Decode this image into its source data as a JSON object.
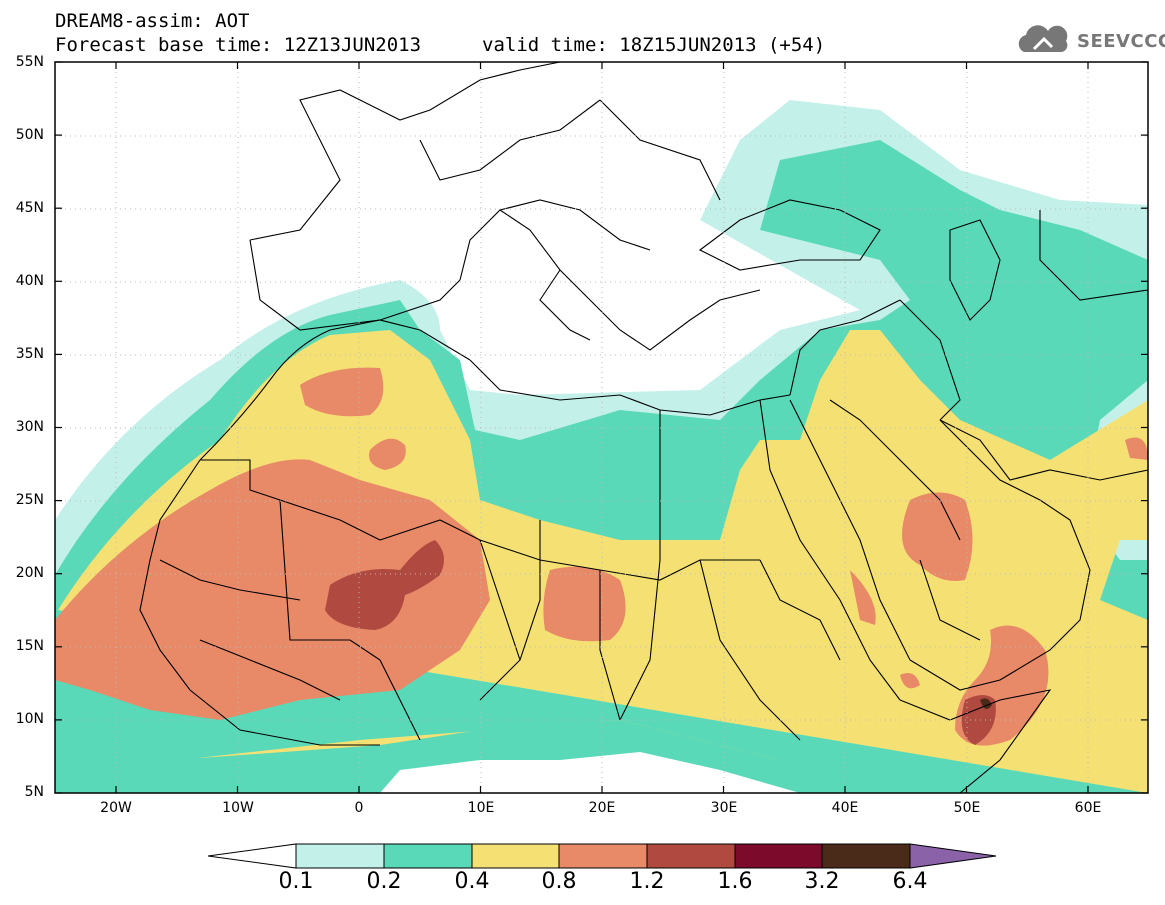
{
  "header": {
    "line1": "DREAM8-assim: AOT",
    "line2": "Forecast base time: 12Z13JUN2013",
    "line3": "valid time: 18Z15JUN2013 (+54)"
  },
  "logo": {
    "text": "SEEVCCC",
    "icon": "cloud-icon"
  },
  "axes": {
    "lat_labels": [
      "55N",
      "50N",
      "45N",
      "40N",
      "35N",
      "30N",
      "25N",
      "20N",
      "15N",
      "10N",
      "5N"
    ],
    "lon_labels": [
      "20W",
      "10W",
      "0",
      "10E",
      "20E",
      "30E",
      "40E",
      "50E",
      "60E"
    ]
  },
  "colorbar": {
    "labels": [
      "0.1",
      "0.2",
      "0.4",
      "0.8",
      "1.2",
      "1.6",
      "3.2",
      "6.4"
    ],
    "colors": [
      "#ffffff",
      "#c4f0ea",
      "#5ad9b8",
      "#f5e173",
      "#e88968",
      "#b04a41",
      "#7c0a2a",
      "#4a2a18",
      "#8a62a8"
    ]
  },
  "map_colors": {
    "light_cyan": "#c4f0ea",
    "green": "#5ad9b8",
    "yellow": "#f5e173",
    "orange": "#e88968",
    "dark_red": "#b04a41",
    "darkest": "#7c2e3a",
    "coast": "#000000"
  }
}
